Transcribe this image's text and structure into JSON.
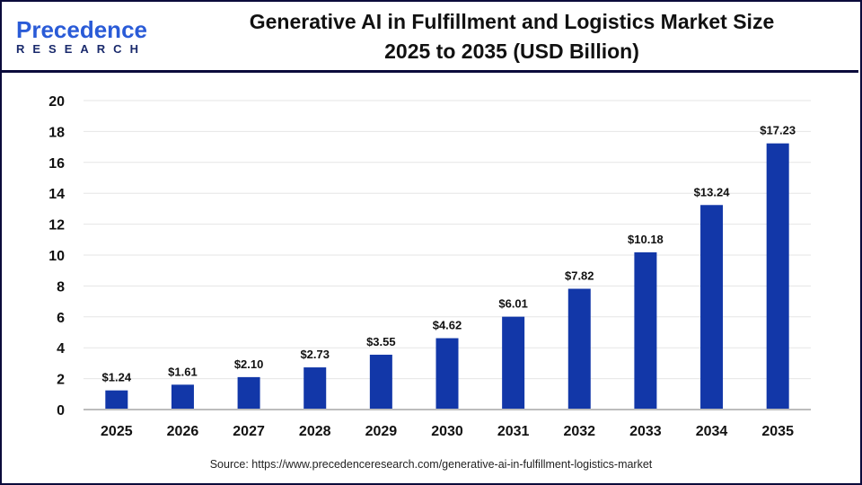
{
  "logo": {
    "line1_a": "P",
    "line1_b": "recedence",
    "line2": "RESEARCH"
  },
  "title_line1": "Generative AI in Fulfillment and Logistics Market Size",
  "title_line2": "2025 to 2035 (USD Billion)",
  "source": "Source: https://www.precedenceresearch.com/generative-ai-in-fulfillment-logistics-market",
  "colors": {
    "bar": "#1237a8",
    "border": "#0b0b3b",
    "grid": "#e6e6e6"
  },
  "chart_data": {
    "type": "bar",
    "title": "Generative AI in Fulfillment and Logistics Market Size 2025 to 2035 (USD Billion)",
    "categories": [
      "2025",
      "2026",
      "2027",
      "2028",
      "2029",
      "2030",
      "2031",
      "2032",
      "2033",
      "2034",
      "2035"
    ],
    "values": [
      1.24,
      1.61,
      2.1,
      2.73,
      3.55,
      4.62,
      6.01,
      7.82,
      10.18,
      13.24,
      17.23
    ],
    "data_labels": [
      "$1.24",
      "$1.61",
      "$2.10",
      "$2.73",
      "$3.55",
      "$4.62",
      "$6.01",
      "$7.82",
      "$10.18",
      "$13.24",
      "$17.23"
    ],
    "yticks": [
      0,
      2,
      4,
      6,
      8,
      10,
      12,
      14,
      16,
      18,
      20
    ],
    "ylim": [
      0,
      20
    ],
    "grid": true,
    "xlabel": "",
    "ylabel": ""
  }
}
